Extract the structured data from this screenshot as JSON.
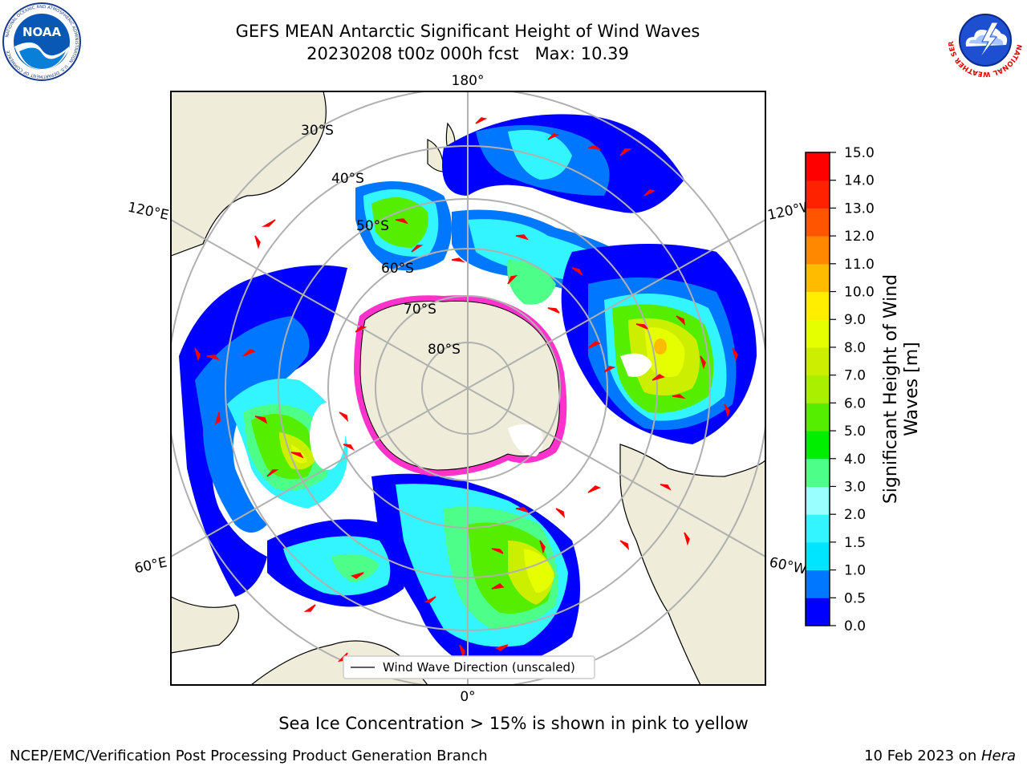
{
  "header": {
    "title_line1": "GEFS MEAN Antarctic Significant Height of Wind Waves",
    "title_line2": "20230208 t00z 000h fcst   Max: 10.39"
  },
  "logos": {
    "noaa": "NOAA",
    "noaa_ring": "NATIONAL OCEANIC AND ATMOSPHERIC ADMINISTRATION · U.S. DEPARTMENT OF COMMERCE",
    "nws_ring": "NATIONAL WEATHER SERVICE"
  },
  "map": {
    "longitude_labels": {
      "top": "180°",
      "bottom": "0°",
      "left_upper": "120°E",
      "right_upper": "120°W",
      "left_lower": "60°E",
      "right_lower": "60°W"
    },
    "latitude_labels": [
      "30°S",
      "40°S",
      "50°S",
      "60°S",
      "70°S",
      "80°S"
    ],
    "legend_entry": "Wind Wave Direction (unscaled)",
    "colors": {
      "land": "#efedd9",
      "coast": "#000000",
      "grid": "#b0b0b0",
      "arrow": "#ff0000",
      "ice_edge": "#ff33cc"
    }
  },
  "colorbar": {
    "label_line1": "Significant Height of Wind",
    "label_line2": "Waves [m]",
    "ticks": [
      "0.0",
      "0.5",
      "1.0",
      "1.5",
      "2.0",
      "3.0",
      "4.0",
      "5.0",
      "6.0",
      "7.0",
      "8.0",
      "9.0",
      "10.0",
      "11.0",
      "12.0",
      "13.0",
      "14.0",
      "15.0"
    ],
    "colors": [
      "#0000ff",
      "#0077ff",
      "#00e5ff",
      "#33f5ff",
      "#99ffff",
      "#4dff88",
      "#00ee00",
      "#55ee00",
      "#aaee00",
      "#ccee00",
      "#e6ff00",
      "#ffee00",
      "#ffbb00",
      "#ff8800",
      "#ff5500",
      "#ff2200",
      "#ff0000"
    ]
  },
  "footer": {
    "note": "Sea Ice Concentration > 15% is shown in pink to yellow",
    "credit_left": "NCEP/EMC/Verification Post Processing Product Generation Branch",
    "credit_date": "10 Feb 2023 on ",
    "credit_machine": "Hera"
  },
  "chart_data": {
    "type": "heatmap",
    "title": "GEFS MEAN Antarctic Significant Height of Wind Waves",
    "subtitle": "20230208 t00z 000h fcst   Max: 10.39",
    "max_value": 10.39,
    "colorbar_label": "Significant Height of Wind Waves [m]",
    "colorbar_range": [
      0.0,
      15.0
    ],
    "colorbar_levels": [
      0.0,
      0.5,
      1.0,
      1.5,
      2.0,
      3.0,
      4.0,
      5.0,
      6.0,
      7.0,
      8.0,
      9.0,
      10.0,
      11.0,
      12.0,
      13.0,
      14.0,
      15.0
    ],
    "latitude_circles": [
      "30°S",
      "40°S",
      "50°S",
      "60°S",
      "70°S",
      "80°S"
    ],
    "longitude_labels": [
      "180°",
      "120°W",
      "60°W",
      "0°",
      "60°E",
      "120°E"
    ],
    "projection": "south polar stereographic",
    "legend": "Wind Wave Direction (unscaled)",
    "legend_placement": "bottom-center",
    "note": "Sea Ice Concentration > 15% is shown in pink to yellow"
  }
}
